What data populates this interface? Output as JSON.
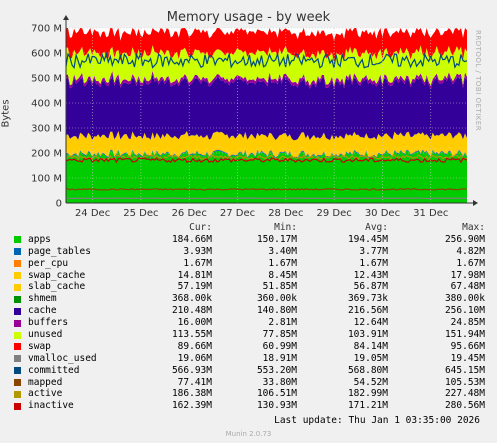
{
  "chart_data": {
    "type": "area",
    "title": "Memory usage - by week",
    "ylabel": "Bytes",
    "watermark": "RRDTOOL / TOBI OETIKER",
    "ylim": [
      0,
      700
    ],
    "y_unit": "M",
    "y_ticks": [
      "0",
      "100 M",
      "200 M",
      "300 M",
      "400 M",
      "500 M",
      "600 M",
      "700 M"
    ],
    "x_ticks": [
      "24 Dec",
      "25 Dec",
      "26 Dec",
      "27 Dec",
      "28 Dec",
      "29 Dec",
      "30 Dec",
      "31 Dec"
    ],
    "columns": [
      "Cur:",
      "Min:",
      "Avg:",
      "Max:"
    ],
    "stack_order": [
      "apps",
      "page_tables",
      "per_cpu",
      "swap_cache",
      "slab_cache",
      "shmem",
      "cache",
      "buffers",
      "unused",
      "swap"
    ],
    "series": [
      {
        "name": "apps",
        "color": "#00cc00",
        "cur": "184.66M",
        "min": "150.17M",
        "avg": "194.45M",
        "max": "256.90M",
        "avg_value": 194.45
      },
      {
        "name": "page_tables",
        "color": "#0066b3",
        "cur": "3.93M",
        "min": "3.40M",
        "avg": "3.77M",
        "max": "4.82M",
        "avg_value": 3.77
      },
      {
        "name": "per_cpu",
        "color": "#ff8000",
        "cur": "1.67M",
        "min": "1.67M",
        "avg": "1.67M",
        "max": "1.67M",
        "avg_value": 1.67
      },
      {
        "name": "swap_cache",
        "color": "#ffcc00",
        "cur": "14.81M",
        "min": "8.45M",
        "avg": "12.43M",
        "max": "17.98M",
        "avg_value": 12.43
      },
      {
        "name": "slab_cache",
        "color": "#ffcc00",
        "cur": "57.19M",
        "min": "51.85M",
        "avg": "56.87M",
        "max": "67.48M",
        "avg_value": 56.87
      },
      {
        "name": "shmem",
        "color": "#008f00",
        "cur": "368.00k",
        "min": "360.00k",
        "avg": "369.73k",
        "max": "380.00k",
        "avg_value": 0.37
      },
      {
        "name": "cache",
        "color": "#330099",
        "cur": "210.48M",
        "min": "140.80M",
        "avg": "216.56M",
        "max": "256.10M",
        "avg_value": 216.56
      },
      {
        "name": "buffers",
        "color": "#990099",
        "cur": "16.00M",
        "min": "2.81M",
        "avg": "12.64M",
        "max": "24.85M",
        "avg_value": 12.64
      },
      {
        "name": "unused",
        "color": "#ccff00",
        "cur": "113.55M",
        "min": "77.85M",
        "avg": "103.91M",
        "max": "151.94M",
        "avg_value": 103.91
      },
      {
        "name": "swap",
        "color": "#ff0000",
        "cur": "89.66M",
        "min": "60.99M",
        "avg": "84.14M",
        "max": "95.66M",
        "avg_value": 84.14
      },
      {
        "name": "vmalloc_used",
        "color": "#808080",
        "cur": "19.06M",
        "min": "18.91M",
        "avg": "19.05M",
        "max": "19.45M",
        "avg_value": 19.05
      },
      {
        "name": "committed",
        "color": "#004a80",
        "cur": "566.93M",
        "min": "553.20M",
        "avg": "568.80M",
        "max": "645.15M",
        "avg_value": 568.8
      },
      {
        "name": "mapped",
        "color": "#8a4500",
        "cur": "77.41M",
        "min": "33.80M",
        "avg": "54.52M",
        "max": "105.53M",
        "avg_value": 54.52
      },
      {
        "name": "active",
        "color": "#b39900",
        "cur": "186.38M",
        "min": "106.51M",
        "avg": "182.99M",
        "max": "227.48M",
        "avg_value": 182.99
      },
      {
        "name": "inactive",
        "color": "#cc0000",
        "cur": "162.39M",
        "min": "130.93M",
        "avg": "171.21M",
        "max": "280.56M",
        "avg_value": 171.21
      }
    ],
    "line_series": [
      "committed",
      "mapped",
      "active",
      "inactive",
      "vmalloc_used"
    ],
    "grid": true
  },
  "footer": {
    "last_update": "Last update: Thu Jan  1 03:35:00 2026",
    "munin": "Munin 2.0.73"
  }
}
